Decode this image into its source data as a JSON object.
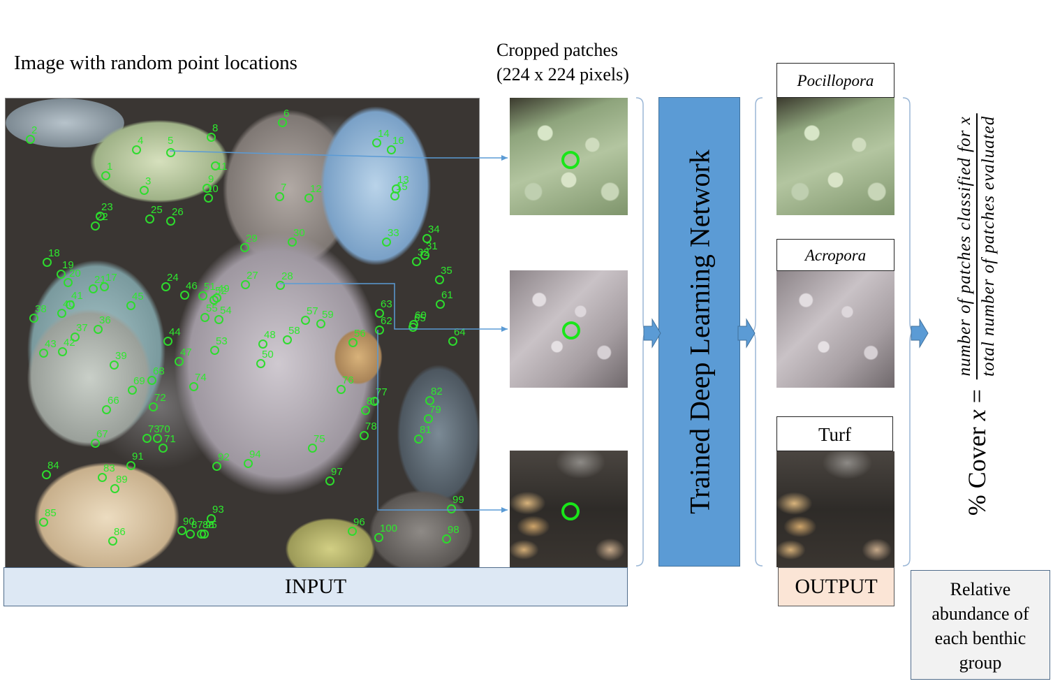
{
  "titles": {
    "image": "Image with random point locations",
    "patches_line1": "Cropped patches",
    "patches_line2": "(224 x 224 pixels)"
  },
  "network": {
    "label": "Trained Deep Learning Network"
  },
  "outputs": [
    {
      "label": "Pocillopora",
      "italic": true
    },
    {
      "label": "Acropora",
      "italic": true
    },
    {
      "label": "Turf",
      "italic": false
    }
  ],
  "sections": {
    "input": "INPUT",
    "output": "OUTPUT",
    "relative_line1": "Relative",
    "relative_line2": "abundance of",
    "relative_line3": "each benthic",
    "relative_line4": "group"
  },
  "formula": {
    "lhs_prefix": "% Cover ",
    "lhs_var": "x",
    "lhs_eq": " =",
    "numerator": "number of patches classified for x",
    "denominator": "total number of patches evaluated"
  },
  "point_labels": [
    "1",
    "2",
    "3",
    "4",
    "5",
    "6",
    "7",
    "8",
    "9",
    "10",
    "11",
    "12",
    "13",
    "14",
    "15",
    "16",
    "17",
    "18",
    "19",
    "20",
    "21",
    "22",
    "23",
    "24",
    "25",
    "26",
    "27",
    "28",
    "29",
    "30",
    "31",
    "32",
    "33",
    "34",
    "35",
    "36",
    "37",
    "38",
    "39",
    "40",
    "41",
    "42",
    "43",
    "44",
    "45",
    "46",
    "47",
    "48",
    "49",
    "50",
    "51",
    "52",
    "53",
    "54",
    "55",
    "56",
    "57",
    "58",
    "59",
    "60",
    "61",
    "62",
    "63",
    "64",
    "65",
    "66",
    "67",
    "68",
    "69",
    "70",
    "71",
    "72",
    "73",
    "74",
    "75",
    "76",
    "77",
    "78",
    "79",
    "80",
    "81",
    "82",
    "83",
    "84",
    "85",
    "86",
    "87",
    "88",
    "89",
    "90",
    "91",
    "92",
    "93",
    "94",
    "95",
    "96",
    "97",
    "98",
    "99",
    "100"
  ],
  "colors": {
    "network_fill": "#5b9bd5",
    "arrow_fill": "#5b9bd5",
    "point_color": "#2ddc2d",
    "input_fill": "#dde8f4",
    "output_fill": "#fbe5d6",
    "relative_fill": "#f2f2f2"
  }
}
